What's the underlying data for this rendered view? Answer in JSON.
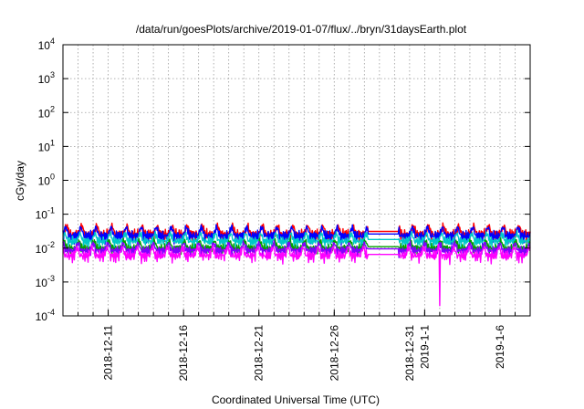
{
  "chart_data": {
    "type": "line",
    "title": "/data/run/goesPlots/archive/2019-01-07/flux/../bryn/31daysEarth.plot",
    "xlabel": "Coordinated Universal Time (UTC)",
    "ylabel": "cGy/day",
    "yscale": "log",
    "ylim": [
      0.0001,
      10000
    ],
    "xlim": [
      "2018-12-08",
      "2019-01-08"
    ],
    "grid": true,
    "legend": "none",
    "y_ticks": [
      {
        "value": 0.0001,
        "base": "10",
        "exp": "-4"
      },
      {
        "value": 0.001,
        "base": "10",
        "exp": "-3"
      },
      {
        "value": 0.01,
        "base": "10",
        "exp": "-2"
      },
      {
        "value": 0.1,
        "base": "10",
        "exp": "-1"
      },
      {
        "value": 1,
        "base": "10",
        "exp": "0"
      },
      {
        "value": 10,
        "base": "10",
        "exp": "1"
      },
      {
        "value": 100,
        "base": "10",
        "exp": "2"
      },
      {
        "value": 1000,
        "base": "10",
        "exp": "3"
      },
      {
        "value": 10000,
        "base": "10",
        "exp": "4"
      }
    ],
    "x_ticks": [
      {
        "date": "2018-12-11",
        "label": "2018-12-11"
      },
      {
        "date": "2018-12-16",
        "label": "2018-12-16"
      },
      {
        "date": "2018-12-21",
        "label": "2018-12-21"
      },
      {
        "date": "2018-12-26",
        "label": "2018-12-26"
      },
      {
        "date": "2018-12-31",
        "label": "2018-12-31"
      },
      {
        "date": "2019-01-01",
        "label": "2019-1-1"
      },
      {
        "date": "2019-01-06",
        "label": "2019-1-6"
      }
    ],
    "x_gridlines": [
      "2018-12-09",
      "2018-12-10",
      "2018-12-11",
      "2018-12-12",
      "2018-12-13",
      "2018-12-14",
      "2018-12-15",
      "2018-12-16",
      "2018-12-17",
      "2018-12-18",
      "2018-12-19",
      "2018-12-20",
      "2018-12-21",
      "2018-12-22",
      "2018-12-23",
      "2018-12-24",
      "2018-12-25",
      "2018-12-26",
      "2018-12-27",
      "2018-12-28",
      "2018-12-29",
      "2018-12-30",
      "2018-12-31",
      "2019-01-01",
      "2019-01-02",
      "2019-01-03",
      "2019-01-04",
      "2019-01-05",
      "2019-01-06",
      "2019-01-07",
      "2019-01-08"
    ],
    "gap": [
      "2018-12-28T06:00",
      "2018-12-30T06:00"
    ],
    "spike": {
      "date": "2019-01-02T00:00",
      "value": 0.0002
    },
    "series": [
      {
        "color": "#ff0000",
        "base": 0.026,
        "amp": 0.022,
        "gap_value": 0.031
      },
      {
        "color": "#0000ff",
        "base": 0.023,
        "amp": 0.02,
        "gap_value": 0.026
      },
      {
        "color": "#00c8c8",
        "base": 0.016,
        "amp": 0.012,
        "gap_value": 0.018
      },
      {
        "color": "#00a000",
        "base": 0.01,
        "amp": 0.007,
        "gap_value": 0.011
      },
      {
        "color": "#8000ff",
        "base": 0.0085,
        "amp": 0.006,
        "gap_value": 0.0095
      },
      {
        "color": "#ff00ff",
        "base": 0.006,
        "amp": 0.005,
        "gap_value": 0.0065
      }
    ]
  }
}
